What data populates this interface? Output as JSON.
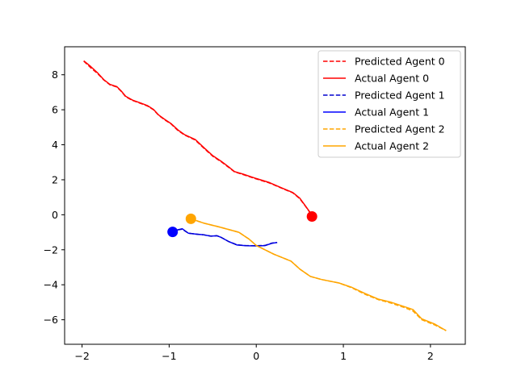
{
  "chart_data": {
    "type": "line",
    "title": "",
    "xlabel": "",
    "ylabel": "",
    "xlim": [
      -2.2,
      2.4
    ],
    "ylim": [
      -7.4,
      9.6
    ],
    "xticks": [
      -2,
      -1,
      0,
      1,
      2
    ],
    "yticks": [
      -6,
      -4,
      -2,
      0,
      2,
      4,
      6,
      8
    ],
    "grid": false,
    "legend_position": "top-right",
    "colors": {
      "agent0": "#ff0000",
      "agent1": "#0000cd",
      "agent2": "#ffa500"
    },
    "series": [
      {
        "name": "Predicted Agent 0",
        "agent": 0,
        "style": "dashed",
        "color": "#ff0000",
        "x": [
          -1.98,
          -1.9,
          -1.82,
          -1.75,
          -1.68,
          -1.6,
          -1.55,
          -1.5,
          -1.42,
          -1.32,
          -1.25,
          -1.18,
          -1.12,
          -1.05,
          -0.98,
          -0.9,
          -0.82,
          -0.7,
          -0.6,
          -0.5,
          -0.4,
          -0.32,
          -0.25,
          -0.15,
          0.0,
          0.15,
          0.3,
          0.42,
          0.5,
          0.57,
          0.65
        ],
        "y": [
          8.78,
          8.4,
          8.06,
          7.7,
          7.43,
          7.3,
          7.05,
          6.75,
          6.53,
          6.35,
          6.22,
          6.0,
          5.68,
          5.42,
          5.2,
          4.82,
          4.55,
          4.27,
          3.8,
          3.35,
          3.02,
          2.72,
          2.45,
          2.3,
          2.05,
          1.82,
          1.5,
          1.25,
          0.92,
          0.45,
          -0.1
        ]
      },
      {
        "name": "Actual Agent 0",
        "agent": 0,
        "style": "solid",
        "color": "#ff0000",
        "x": [
          -1.98,
          -1.9,
          -1.82,
          -1.75,
          -1.68,
          -1.6,
          -1.55,
          -1.5,
          -1.42,
          -1.32,
          -1.25,
          -1.18,
          -1.12,
          -1.05,
          -0.98,
          -0.9,
          -0.82,
          -0.7,
          -0.6,
          -0.5,
          -0.4,
          -0.32,
          -0.25,
          -0.15,
          0.0,
          0.15,
          0.3,
          0.42,
          0.5,
          0.57,
          0.65
        ],
        "y": [
          8.8,
          8.47,
          8.1,
          7.72,
          7.45,
          7.32,
          7.07,
          6.77,
          6.55,
          6.37,
          6.24,
          6.02,
          5.7,
          5.45,
          5.22,
          4.85,
          4.57,
          4.3,
          3.83,
          3.38,
          3.05,
          2.75,
          2.47,
          2.32,
          2.07,
          1.84,
          1.52,
          1.27,
          0.95,
          0.47,
          -0.1
        ]
      },
      {
        "name": "Predicted Agent 1",
        "agent": 1,
        "style": "dashed",
        "color": "#0000cd",
        "x": [
          -0.97,
          -0.92,
          -0.85,
          -0.78,
          -0.7,
          -0.6,
          -0.52,
          -0.45,
          -0.4,
          -0.32,
          -0.22,
          -0.12,
          0.0,
          0.1,
          0.18,
          0.24
        ],
        "y": [
          -0.98,
          -0.88,
          -0.82,
          -1.05,
          -1.1,
          -1.15,
          -1.22,
          -1.2,
          -1.3,
          -1.52,
          -1.72,
          -1.76,
          -1.77,
          -1.75,
          -1.62,
          -1.58
        ]
      },
      {
        "name": "Actual Agent 1",
        "agent": 1,
        "style": "solid",
        "color": "#0000ff",
        "x": [
          -0.97,
          -0.92,
          -0.85,
          -0.78,
          -0.7,
          -0.6,
          -0.52,
          -0.45,
          -0.4,
          -0.32,
          -0.22,
          -0.12,
          0.0,
          0.1,
          0.18,
          0.24
        ],
        "y": [
          -0.98,
          -0.88,
          -0.8,
          -1.05,
          -1.1,
          -1.15,
          -1.22,
          -1.2,
          -1.3,
          -1.52,
          -1.73,
          -1.77,
          -1.78,
          -1.76,
          -1.63,
          -1.58
        ]
      },
      {
        "name": "Predicted Agent 2",
        "agent": 2,
        "style": "dashed",
        "color": "#ffa500",
        "x": [
          -0.75,
          -0.6,
          -0.42,
          -0.2,
          -0.08,
          0.0,
          0.2,
          0.4,
          0.5,
          0.62,
          0.75,
          0.95,
          1.1,
          1.25,
          1.4,
          1.55,
          1.7,
          1.8,
          1.9,
          2.05,
          2.18
        ],
        "y": [
          -0.23,
          -0.48,
          -0.7,
          -1.0,
          -1.4,
          -1.75,
          -2.25,
          -2.65,
          -3.1,
          -3.52,
          -3.7,
          -3.9,
          -4.18,
          -4.55,
          -4.85,
          -5.05,
          -5.3,
          -5.5,
          -6.0,
          -6.3,
          -6.62
        ]
      },
      {
        "name": "Actual Agent 2",
        "agent": 2,
        "style": "solid",
        "color": "#ffa500",
        "x": [
          -0.75,
          -0.6,
          -0.42,
          -0.2,
          -0.08,
          0.0,
          0.2,
          0.4,
          0.5,
          0.62,
          0.75,
          0.95,
          1.1,
          1.25,
          1.4,
          1.55,
          1.7,
          1.8,
          1.9,
          2.05,
          2.18
        ],
        "y": [
          -0.23,
          -0.48,
          -0.7,
          -1.0,
          -1.4,
          -1.75,
          -2.25,
          -2.65,
          -3.1,
          -3.52,
          -3.7,
          -3.9,
          -4.15,
          -4.5,
          -4.82,
          -5.0,
          -5.25,
          -5.42,
          -5.95,
          -6.25,
          -6.62
        ]
      }
    ],
    "markers": [
      {
        "agent": 0,
        "x": 0.64,
        "y": -0.1,
        "color": "#ff0000"
      },
      {
        "agent": 1,
        "x": -0.96,
        "y": -0.98,
        "color": "#0000ff"
      },
      {
        "agent": 2,
        "x": -0.75,
        "y": -0.23,
        "color": "#ffa500"
      }
    ],
    "legend": [
      "Predicted Agent 0",
      "Actual Agent 0",
      "Predicted Agent 1",
      "Actual Agent 1",
      "Predicted Agent 2",
      "Actual Agent 2"
    ]
  }
}
